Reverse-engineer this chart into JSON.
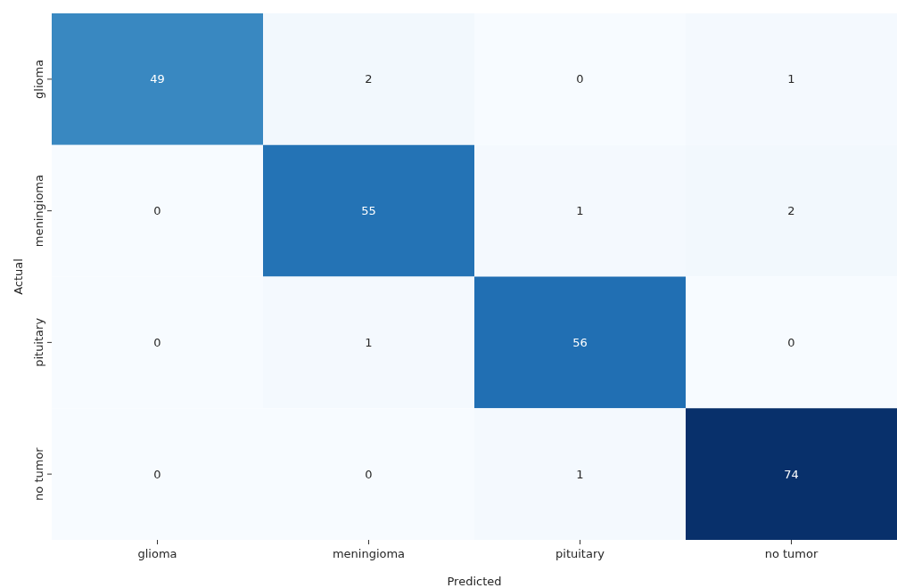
{
  "chart_data": {
    "type": "heatmap",
    "xlabel": "Predicted",
    "ylabel": "Actual",
    "categories": [
      "glioma",
      "meningioma",
      "pituitary",
      "no tumor"
    ],
    "y_categories": [
      "glioma",
      "meningioma",
      "pituitary",
      "no tumor"
    ],
    "cells": [
      [
        49,
        2,
        0,
        1
      ],
      [
        0,
        55,
        1,
        2
      ],
      [
        0,
        1,
        56,
        0
      ],
      [
        0,
        0,
        1,
        74
      ]
    ],
    "data_labels": true
  }
}
